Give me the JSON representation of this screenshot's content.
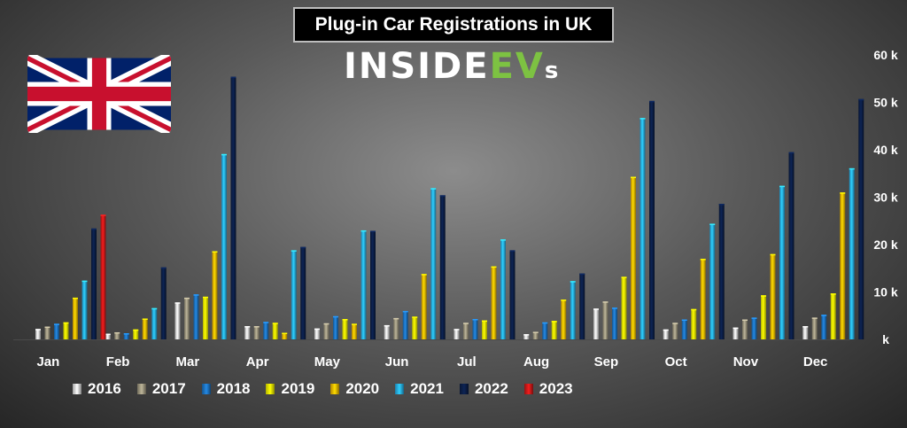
{
  "title": "Plug-in Car Registrations in UK",
  "logo": {
    "main": "INSIDE",
    "accent": "EV",
    "suffix": "s",
    "accent_color": "#7dc242"
  },
  "flag_icon": "uk-flag-icon",
  "chart_data": {
    "type": "bar",
    "title": "Plug-in Car Registrations in UK",
    "categories": [
      "Jan",
      "Feb",
      "Mar",
      "Apr",
      "May",
      "Jun",
      "Jul",
      "Aug",
      "Sep",
      "Oct",
      "Nov",
      "Dec"
    ],
    "y_ticks": [
      "k",
      "10 k",
      "20 k",
      "30 k",
      "40 k",
      "50 k",
      "60 k"
    ],
    "ylim": [
      0,
      60000
    ],
    "y_axis_position": "right",
    "grid": false,
    "legend_position": "bottom",
    "series": [
      {
        "name": "2016",
        "color": "#e8e8e8",
        "values": [
          2200,
          1200,
          7800,
          2800,
          2300,
          3000,
          2200,
          1100,
          6500,
          2100,
          2500,
          2800
        ]
      },
      {
        "name": "2017",
        "color": "#a49d85",
        "values": [
          2700,
          1500,
          8800,
          2800,
          3400,
          4500,
          3500,
          1600,
          8000,
          3500,
          4200,
          4600
        ]
      },
      {
        "name": "2018",
        "color": "#1f78c8",
        "values": [
          3300,
          1300,
          9500,
          3700,
          4900,
          6000,
          4300,
          3600,
          6700,
          4200,
          4600,
          5200
        ]
      },
      {
        "name": "2019",
        "color": "#ffff00",
        "values": [
          3600,
          2100,
          9000,
          3500,
          4300,
          4800,
          4000,
          3900,
          13200,
          6400,
          9300,
          9700
        ]
      },
      {
        "name": "2020",
        "color": "#ffc000",
        "values": [
          8800,
          4400,
          18600,
          1400,
          3300,
          13800,
          15400,
          8400,
          34300,
          17000,
          18000,
          31000
        ]
      },
      {
        "name": "2021",
        "color": "#29b6f6",
        "values": [
          12400,
          6600,
          39100,
          18800,
          23000,
          31900,
          21100,
          12300,
          46700,
          24400,
          32400,
          36100
        ]
      },
      {
        "name": "2022",
        "color": "#0b1f4a",
        "values": [
          23400,
          15200,
          55400,
          19500,
          22900,
          30400,
          18800,
          13900,
          50300,
          28600,
          39500,
          50700
        ]
      },
      {
        "name": "2023",
        "color": "#d51a1a",
        "values": [
          26300,
          null,
          null,
          null,
          null,
          null,
          null,
          null,
          null,
          null,
          null,
          null
        ]
      }
    ]
  }
}
